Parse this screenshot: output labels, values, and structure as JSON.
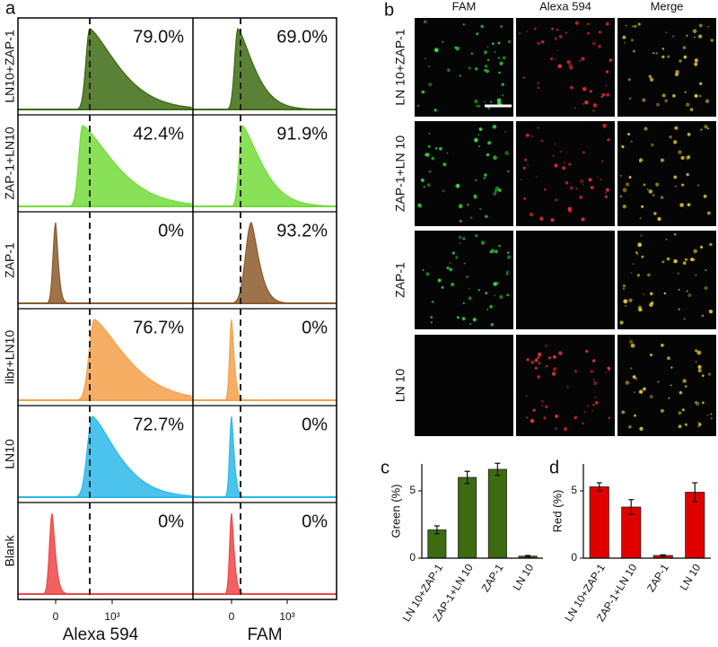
{
  "panel_labels": [
    "a",
    "b",
    "c",
    "d"
  ],
  "flow": {
    "rows": [
      "LN10+ZAP-1",
      "ZAP-1+LN10",
      "ZAP-1",
      "libr+LN10",
      "LN10",
      "Blank"
    ],
    "colors": [
      "#3d6b12",
      "#74dc3a",
      "#8b5a2b",
      "#f5a04a",
      "#2bb8ea",
      "#f04545"
    ],
    "alexa_pct": [
      "79.0%",
      "42.4%",
      "0%",
      "76.7%",
      "72.7%",
      "0%"
    ],
    "fam_pct": [
      "69.0%",
      "91.9%",
      "93.2%",
      "0%",
      "0%",
      "0%"
    ],
    "x_labels": [
      "Alexa 594",
      "FAM"
    ],
    "tick_labels": [
      "0",
      "10³"
    ]
  },
  "images": {
    "columns": [
      "FAM",
      "Alexa 594",
      "Merge"
    ],
    "rows": [
      "LN 10+ZAP-1",
      "ZAP-1+LN 10",
      "ZAP-1",
      "LN 10"
    ]
  },
  "chart_data": [
    {
      "type": "bar",
      "ylabel": "Green (%)",
      "categories": [
        "LN 10+ZAP-1",
        "ZAP-1+LN 10",
        "ZAP-1",
        "LN 10"
      ],
      "values": [
        2.1,
        6.0,
        6.6,
        0.15
      ],
      "errors": [
        0.3,
        0.45,
        0.45,
        0.05
      ],
      "color": "#3d6b12",
      "ylim": [
        0,
        7
      ],
      "yticks": [
        0,
        5
      ]
    },
    {
      "type": "bar",
      "ylabel": "Red (%)",
      "categories": [
        "LN 10+ZAP-1",
        "ZAP-1+LN 10",
        "ZAP-1",
        "LN 10"
      ],
      "values": [
        5.3,
        3.8,
        0.2,
        4.9
      ],
      "errors": [
        0.3,
        0.55,
        0.05,
        0.7
      ],
      "color": "#e00000",
      "ylim": [
        0,
        7
      ],
      "yticks": [
        0,
        5
      ]
    }
  ]
}
